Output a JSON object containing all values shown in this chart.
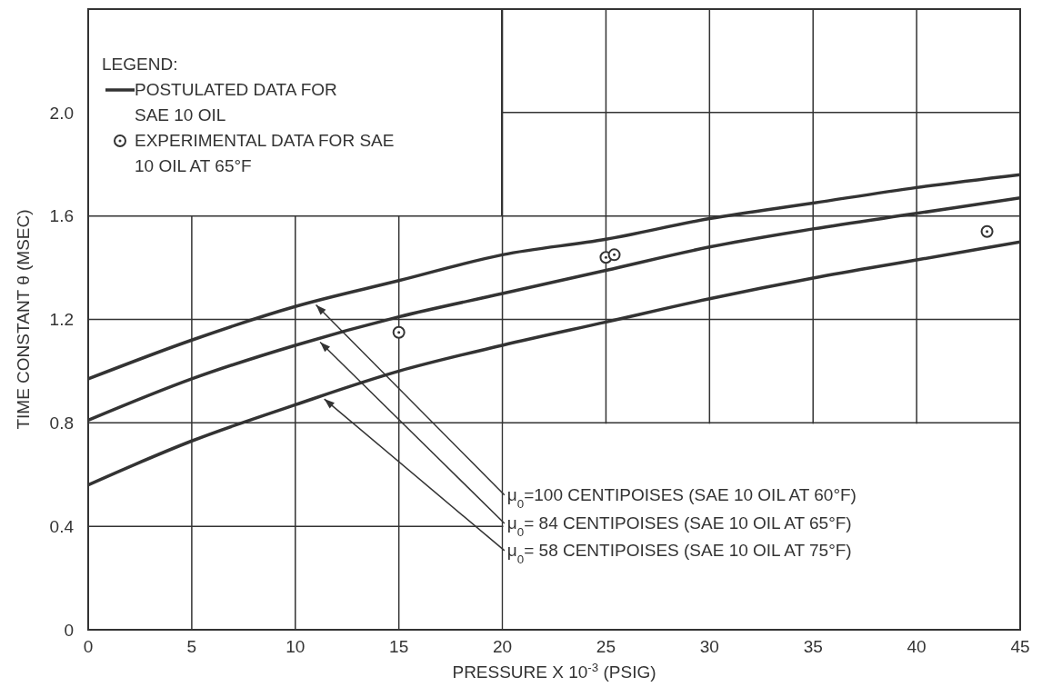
{
  "chart_data": {
    "type": "line",
    "xlabel": "PRESSURE X 10$^{-3}$ (PSIG)",
    "ylabel": "TIME CONSTANT θ (MSEC)",
    "legend_title": "LEGEND:",
    "annotations": [
      "POSTULATED DATA FOR SAE 10 OIL"
    ],
    "series": [
      {
        "name": "μ$_{0}$=100 CENTIPOISES (SAE 10 OIL AT 60°F)",
        "color": "#333333",
        "x": [
          0,
          5,
          10,
          15,
          20,
          25,
          30,
          35,
          40,
          45
        ],
        "values": [
          0.97,
          1.12,
          1.25,
          1.35,
          1.45,
          1.51,
          1.59,
          1.65,
          1.71,
          1.76
        ]
      },
      {
        "name": "μ$_{0}$= 84 CENTIPOISES (SAE 10 OIL AT 65°F)",
        "color": "#333333",
        "x": [
          0,
          5,
          10,
          15,
          20,
          25,
          30,
          35,
          40,
          45
        ],
        "values": [
          0.81,
          0.97,
          1.1,
          1.21,
          1.3,
          1.39,
          1.48,
          1.55,
          1.61,
          1.67
        ]
      },
      {
        "name": "μ$_{0}$= 58 CENTIPOISES (SAE 10 OIL AT 75°F)",
        "color": "#333333",
        "x": [
          0,
          5,
          10,
          15,
          20,
          25,
          30,
          35,
          40,
          45
        ],
        "values": [
          0.56,
          0.73,
          0.87,
          1.0,
          1.1,
          1.19,
          1.28,
          1.36,
          1.43,
          1.5
        ]
      },
      {
        "name": "EXPERIMENTAL DATA FOR SAE 10 OIL AT 65°F",
        "type": "scatter",
        "marker": "circle",
        "color": "#333333",
        "x": [
          15,
          25,
          25.4,
          43.4
        ],
        "values": [
          1.15,
          1.44,
          1.45,
          1.54
        ]
      }
    ],
    "xlim": [
      0,
      45
    ],
    "xticks": [
      0,
      5,
      10,
      15,
      20,
      25,
      30,
      35,
      40,
      45
    ],
    "ylim": [
      0,
      2.4
    ],
    "yticks": [
      0,
      0.4,
      0.8,
      1.2,
      1.6,
      {
        "value": 2,
        "label": "2.0"
      }
    ],
    "grid": true,
    "legend": "top left",
    "marker": "none",
    "line_style": "solid"
  }
}
